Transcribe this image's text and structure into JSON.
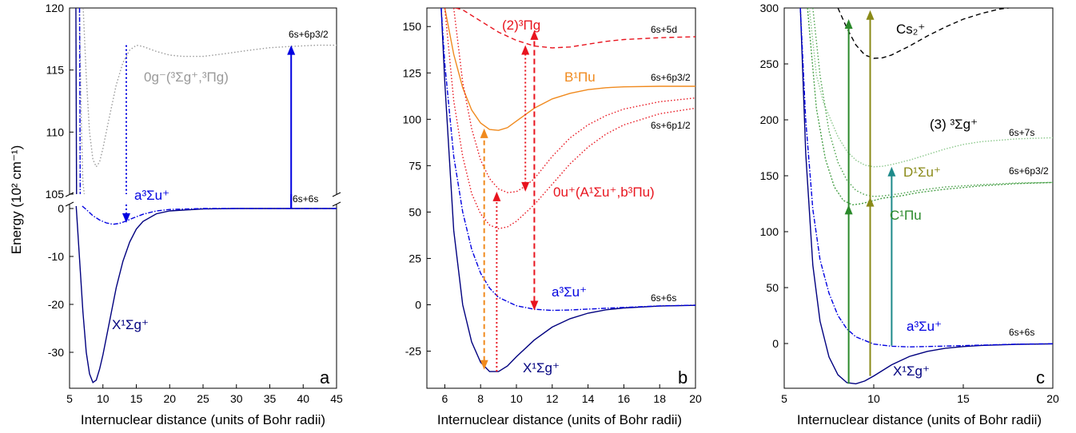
{
  "colors": {
    "navy": "#00007f",
    "blue": "#0000e0",
    "gray": "#9a9a9a",
    "orange": "#f08a1e",
    "red": "#e8141e",
    "green_dark": "#2b8a2b",
    "green_mid": "#48a048",
    "green_light": "#8cc88c",
    "olive": "#8a8a18",
    "teal": "#1e8a8a",
    "black": "#000000"
  },
  "chart_data": [
    {
      "type": "line",
      "panel_letter": "a",
      "xlabel": "Internuclear distance (units of Bohr radii)",
      "ylabel": "Energy (10² cm⁻¹)",
      "xlim": [
        5,
        45
      ],
      "xticks": [
        "5",
        "10",
        "15",
        "20",
        "25",
        "30",
        "35",
        "40",
        "45"
      ],
      "y_axis_break": {
        "lower_range": [
          -38,
          0.5
        ],
        "upper_range": [
          105,
          120
        ]
      },
      "yticks_lower": [
        "-30",
        "-20",
        "-10",
        "0"
      ],
      "yticks_upper": [
        "105",
        "110",
        "115",
        "120"
      ],
      "series": [
        {
          "name": "X¹Σg⁺",
          "x": [
            6.0,
            6.5,
            7.0,
            7.5,
            8.0,
            8.5,
            9.0,
            9.5,
            10.0,
            11.0,
            12.0,
            13.0,
            14.0,
            15.0,
            16.0,
            18.0,
            20.0,
            25.0,
            30.0,
            45.0
          ],
          "y": [
            0.5,
            -10.5,
            -21.5,
            -30.0,
            -34.5,
            -36.3,
            -35.8,
            -33.5,
            -30.5,
            -23.5,
            -16.5,
            -11.0,
            -7.0,
            -4.3,
            -2.7,
            -1.1,
            -0.5,
            -0.1,
            0.0,
            0.0
          ]
        },
        {
          "name": "a³Σu⁺",
          "x": [
            6.9,
            7.5,
            8.5,
            9.5,
            10.5,
            11.5,
            12.5,
            13.5,
            14.5,
            16.0,
            18.0,
            20.0,
            25.0,
            45.0
          ],
          "y": [
            0.5,
            -0.2,
            -1.5,
            -2.4,
            -3.0,
            -3.3,
            -3.1,
            -2.6,
            -2.0,
            -1.2,
            -0.5,
            -0.2,
            0.0,
            0.0
          ]
        },
        {
          "name": "0g⁻(³Σg⁺,³Πg)",
          "x": [
            7.0,
            7.5,
            8.0,
            8.5,
            9.0,
            9.5,
            10.0,
            11.0,
            12.0,
            13.0,
            14.0,
            15.0,
            16.0,
            17.0,
            18.0,
            20.0,
            22.0,
            25.0,
            28.0,
            32.0,
            35.0,
            38.0,
            42.0,
            45.0
          ],
          "y": [
            120.5,
            114.5,
            110.0,
            107.8,
            107.2,
            107.6,
            108.7,
            111.3,
            113.8,
            115.6,
            116.6,
            117.0,
            116.9,
            116.7,
            116.5,
            116.2,
            116.1,
            116.1,
            116.3,
            116.6,
            116.8,
            116.9,
            117.0,
            117.0
          ]
        },
        {
          "name": "repulsive-inner",
          "x": [
            6.45,
            6.6,
            6.8,
            7.0,
            7.2
          ],
          "y": [
            120.5,
            116.0,
            110.0,
            106.0,
            105.0
          ]
        }
      ],
      "arrows": [
        {
          "label": "solid-up",
          "x": 38.2,
          "y_from": 0,
          "y_to": 117
        },
        {
          "label": "dotted-down",
          "x": 13.5,
          "y_from": 117,
          "y_to": -3
        }
      ],
      "annotations": [
        "6s+6p3/2",
        "6s+6s"
      ]
    },
    {
      "type": "line",
      "panel_letter": "b",
      "xlabel": "Internuclear distance (units of Bohr radii)",
      "ylabel": "",
      "xlim": [
        5,
        20
      ],
      "ylim": [
        -45,
        160
      ],
      "xticks": [
        "6",
        "8",
        "10",
        "12",
        "14",
        "16",
        "18",
        "20"
      ],
      "yticks": [
        "-25",
        "0",
        "25",
        "50",
        "75",
        "100",
        "125",
        "150"
      ],
      "series": [
        {
          "name": "X¹Σg⁺",
          "x": [
            5.8,
            6.0,
            6.5,
            7.0,
            7.5,
            8.0,
            8.5,
            9.0,
            9.5,
            10.0,
            11.0,
            12.0,
            13.0,
            14.0,
            15.0,
            16.0,
            18.0,
            20.0
          ],
          "y": [
            160.0,
            120.0,
            40.0,
            0.0,
            -20.0,
            -31.0,
            -36.0,
            -36.0,
            -33.0,
            -28.0,
            -19.0,
            -12.0,
            -7.5,
            -4.5,
            -2.7,
            -1.7,
            -0.7,
            -0.3
          ]
        },
        {
          "name": "a³Σu⁺",
          "x": [
            5.8,
            6.0,
            6.5,
            7.0,
            7.5,
            8.0,
            8.5,
            9.0,
            10.0,
            11.0,
            12.0,
            13.0,
            14.0,
            16.0,
            18.0,
            20.0
          ],
          "y": [
            160.0,
            130.0,
            80.0,
            50.0,
            30.0,
            17.0,
            9.0,
            4.0,
            -0.5,
            -2.4,
            -3.0,
            -2.8,
            -2.3,
            -1.4,
            -0.6,
            -0.2
          ]
        },
        {
          "name": "B¹Πu",
          "x": [
            6.0,
            6.5,
            7.0,
            7.5,
            8.0,
            8.5,
            9.0,
            9.5,
            10.0,
            11.0,
            12.0,
            13.0,
            14.0,
            15.0,
            16.0,
            18.0,
            20.0
          ],
          "y": [
            160.0,
            135.0,
            117.0,
            105.0,
            98.0,
            94.5,
            94.0,
            95.5,
            99.0,
            106.0,
            111.0,
            114.0,
            116.0,
            117.0,
            117.5,
            117.8,
            117.8
          ]
        },
        {
          "name": "0u⁺(A¹Σu⁺,b³Πu)-lower",
          "x": [
            6.0,
            6.5,
            7.0,
            7.5,
            8.0,
            8.5,
            9.0,
            9.5,
            10.0,
            11.0,
            12.0,
            13.0,
            14.0,
            15.0,
            16.0,
            18.0,
            20.0
          ],
          "y": [
            160.0,
            110.0,
            80.0,
            60.0,
            49.0,
            43.0,
            41.0,
            42.0,
            45.0,
            54.0,
            65.0,
            76.0,
            85.0,
            92.0,
            97.0,
            103.0,
            106.0
          ]
        },
        {
          "name": "0u⁺(A¹Σu⁺,b³Πu)-upper",
          "x": [
            6.5,
            7.0,
            7.5,
            8.0,
            8.5,
            9.0,
            9.5,
            10.0,
            10.5,
            11.0,
            12.0,
            13.0,
            14.0,
            15.0,
            16.0,
            18.0,
            20.0
          ],
          "y": [
            160.0,
            120.0,
            95.0,
            78.0,
            68.0,
            62.5,
            60.5,
            61.0,
            64.0,
            68.0,
            80.0,
            90.0,
            97.0,
            102.0,
            105.5,
            109.5,
            111.5
          ]
        },
        {
          "name": "(2)³Πg",
          "x": [
            6.6,
            7.0,
            8.0,
            9.0,
            10.0,
            11.0,
            12.0,
            13.0,
            14.0,
            15.0,
            16.0,
            18.0,
            20.0
          ],
          "y": [
            160.0,
            159.0,
            153.0,
            147.0,
            142.5,
            139.5,
            138.5,
            139.0,
            140.5,
            142.0,
            143.0,
            144.0,
            144.5
          ]
        }
      ],
      "arrows": [
        {
          "label": "orange-dashed",
          "x": 8.2,
          "y_from": -35,
          "y_to": 95,
          "double": true
        },
        {
          "label": "red-dotted",
          "x": 8.9,
          "y_from": -36,
          "y_to": 61
        },
        {
          "label": "red-dotted-mid",
          "x": 10.5,
          "y_from": 140,
          "y_to": 61,
          "double": true
        },
        {
          "label": "red-dashed",
          "x": 11.0,
          "y_from": -3,
          "y_to": 148,
          "double": true
        }
      ],
      "annotations": [
        "6s+5d",
        "6s+6p3/2",
        "6s+6p1/2",
        "6s+6s"
      ]
    },
    {
      "type": "line",
      "panel_letter": "c",
      "xlabel": "Internuclear distance (units of Bohr radii)",
      "ylabel": "",
      "xlim": [
        5,
        20
      ],
      "ylim": [
        -40,
        300
      ],
      "xticks": [
        "5",
        "10",
        "15",
        "20"
      ],
      "yticks": [
        "0",
        "50",
        "100",
        "150",
        "200",
        "250",
        "300"
      ],
      "series": [
        {
          "name": "X¹Σg⁺",
          "x": [
            5.9,
            6.2,
            6.6,
            7.0,
            7.5,
            8.0,
            8.5,
            9.0,
            9.5,
            10.0,
            11.0,
            12.0,
            13.0,
            14.0,
            15.0,
            16.0,
            18.0,
            20.0
          ],
          "y": [
            300.0,
            170.0,
            70.0,
            20.0,
            -12.0,
            -28.0,
            -35.0,
            -36.0,
            -33.5,
            -29.0,
            -19.0,
            -11.5,
            -7.0,
            -4.2,
            -2.7,
            -1.7,
            -0.7,
            -0.3
          ]
        },
        {
          "name": "a³Σu⁺",
          "x": [
            5.9,
            6.2,
            6.6,
            7.0,
            7.5,
            8.0,
            8.5,
            9.0,
            10.0,
            11.0,
            12.0,
            14.0,
            16.0,
            18.0,
            20.0
          ],
          "y": [
            300.0,
            200.0,
            120.0,
            75.0,
            45.0,
            25.0,
            13.0,
            6.0,
            -0.5,
            -2.4,
            -3.0,
            -2.3,
            -1.4,
            -0.6,
            -0.2
          ]
        },
        {
          "name": "C¹Πu",
          "x": [
            6.3,
            6.8,
            7.3,
            7.8,
            8.3,
            8.8,
            9.3,
            9.8,
            10.5,
            11.5,
            12.5,
            14.0,
            16.0,
            18.0,
            20.0
          ],
          "y": [
            300.0,
            210.0,
            165.0,
            140.0,
            128.0,
            124.0,
            125.0,
            127.0,
            130.0,
            132.0,
            135.0,
            138.0,
            141.0,
            143.0,
            144.0
          ]
        },
        {
          "name": "D¹Σu⁺",
          "x": [
            6.6,
            7.0,
            7.5,
            8.0,
            8.5,
            9.0,
            9.5,
            10.0,
            10.5,
            11.5,
            12.5,
            14.0,
            16.0,
            18.0,
            20.0
          ],
          "y": [
            300.0,
            240.0,
            190.0,
            162.0,
            146.0,
            137.0,
            133.0,
            131.5,
            132.0,
            134.0,
            137.0,
            140.0,
            142.0,
            143.5,
            144.0
          ]
        },
        {
          "name": "(3) ³Σg⁺",
          "x": [
            6.4,
            6.8,
            7.2,
            7.6,
            8.0,
            8.5,
            9.0,
            9.5,
            10.0,
            10.5,
            11.0,
            12.0,
            13.0,
            14.0,
            15.0,
            16.0,
            18.0,
            20.0
          ],
          "y": [
            300.0,
            240.0,
            215.0,
            200.0,
            185.0,
            172.0,
            164.0,
            159.5,
            158.0,
            158.5,
            160.0,
            164.0,
            169.0,
            174.0,
            178.0,
            180.5,
            183.0,
            184.0
          ]
        },
        {
          "name": "Cs₂⁺",
          "x": [
            8.0,
            8.5,
            9.0,
            9.5,
            10.0,
            10.5,
            11.0,
            12.0,
            13.0,
            14.0,
            15.0,
            16.0,
            17.0,
            18.0,
            19.0,
            20.0
          ],
          "y": [
            300.0,
            282.0,
            267.0,
            258.0,
            255.0,
            255.5,
            258.0,
            266.0,
            275.0,
            283.0,
            290.0,
            295.0,
            299.0,
            301.0,
            302.0,
            302.0
          ]
        }
      ],
      "arrows": [
        {
          "label": "green",
          "x": 8.6,
          "y_from": -36,
          "y_to": 290
        },
        {
          "label": "olive",
          "x": 9.8,
          "y_from": -29,
          "y_to": 298
        },
        {
          "label": "teal",
          "x": 11.0,
          "y_from": -2,
          "y_to": 158
        }
      ],
      "annotations": [
        "6s+7s",
        "6s+6p3/2",
        "6s+6s"
      ]
    }
  ],
  "text": {
    "ylabel": "Energy (10² cm⁻¹)",
    "xlabel": "Internuclear distance (units of Bohr radii)",
    "a_label_X": "X¹Σg⁺",
    "a_label_a": "a³Σu⁺",
    "a_label_0g": "0g⁻(³Σg⁺,³Πg)",
    "a_asym_6p32": "6s+6p3/2",
    "a_asym_6s6s": "6s+6s",
    "b_label_2Pig": "(2)³Πg",
    "b_label_B": "B¹Πu",
    "b_label_0u": "0u⁺(A¹Σu⁺,b³Πu)",
    "b_label_a": "a³Σu⁺",
    "b_label_X": "X¹Σg⁺",
    "b_asym_5d": "6s+5d",
    "b_asym_6p32": "6s+6p3/2",
    "b_asym_6p12": "6s+6p1/2",
    "b_asym_6s6s": "6s+6s",
    "c_label_Cs2p": "Cs₂⁺",
    "c_label_3Sig": "(3) ³Σg⁺",
    "c_label_D": "D¹Σu⁺",
    "c_label_C": "C¹Πu",
    "c_label_a": "a³Σu⁺",
    "c_label_X": "X¹Σg⁺",
    "c_asym_7s": "6s+7s",
    "c_asym_6p32": "6s+6p3/2",
    "c_asym_6s6s": "6s+6s",
    "letter_a": "a",
    "letter_b": "b",
    "letter_c": "c"
  }
}
